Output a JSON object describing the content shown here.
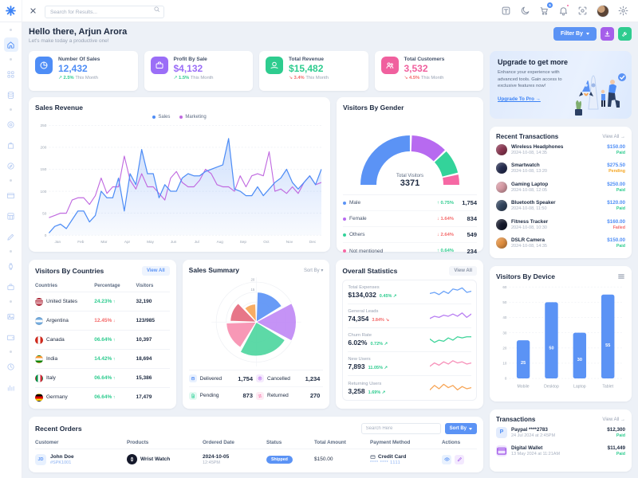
{
  "colors": {
    "primary": "#4e8df6",
    "purple": "#a55eea",
    "green": "#2ecc8f",
    "pink": "#f0609e",
    "positive": "#2ecc8f",
    "negative": "#f46a6a"
  },
  "topbar": {
    "search_placeholder": "Search for Results...",
    "cart_badge": "5",
    "icons": [
      "translate",
      "moon",
      "cart",
      "bell",
      "scan",
      "avatar",
      "gear"
    ]
  },
  "sidebar": {
    "items": [
      "separator",
      "home",
      "separator",
      "apps",
      "database",
      "separator",
      "target",
      "shopping-bag",
      "compass",
      "separator",
      "credit-card",
      "calculator",
      "pencil",
      "separator",
      "watch",
      "briefcase",
      "separator",
      "image",
      "wallet",
      "separator",
      "clock",
      "bar-chart"
    ]
  },
  "header": {
    "greeting": "Hello there, Arjun Arora",
    "subtitle": "Let's make today a productive one!",
    "filter_label": "Filter By"
  },
  "stats": [
    {
      "label": "Number Of Sales",
      "value": "12,432",
      "delta": "2.5%",
      "dir": "up",
      "suffix": "This Month",
      "color": "#4e8df6",
      "icon": "pie"
    },
    {
      "label": "Profit By Sale",
      "value": "$4,132",
      "delta": "1.5%",
      "dir": "up",
      "suffix": "This Month",
      "color": "#9b6ef7",
      "icon": "briefcase"
    },
    {
      "label": "Total Revenue",
      "value": "$15,482",
      "delta": "3.4%",
      "dir": "down",
      "suffix": "This Month",
      "color": "#2ecc8f",
      "icon": "money"
    },
    {
      "label": "Total Customers",
      "value": "3,532",
      "delta": "4.5%",
      "dir": "down",
      "suffix": "This Month",
      "color": "#f0609e",
      "icon": "users"
    }
  ],
  "upgrade": {
    "title": "Upgrade to get more",
    "body": "Enhance your experience with advanced tools. Gain access to exclusive features now!",
    "cta": "Upgrade To Pro →"
  },
  "recent_transactions": {
    "title": "Recent Transactions",
    "view_all": "View All →",
    "items": [
      {
        "name": "Wireless Headphones",
        "date": "2024-10-08, 14:35",
        "amount": "$150.00",
        "status": "Paid",
        "icon_bg": "#8a3550"
      },
      {
        "name": "Smartwatch",
        "date": "2024-10-08, 13:20",
        "amount": "$275.50",
        "status": "Pending",
        "icon_bg": "#232a4d"
      },
      {
        "name": "Gaming Laptop",
        "date": "2024-10-08, 12:05",
        "amount": "$250.00",
        "status": "Paid",
        "icon_bg": "#d79aa4"
      },
      {
        "name": "Bluetooth Speaker",
        "date": "2024-10-08, 11:50",
        "amount": "$120.00",
        "status": "Paid",
        "icon_bg": "#31435c"
      },
      {
        "name": "Fitness Tracker",
        "date": "2024-10-08, 10:30",
        "amount": "$160.00",
        "status": "Failed",
        "icon_bg": "#15192b"
      },
      {
        "name": "DSLR Camera",
        "date": "2024-10-08, 14:35",
        "amount": "$150.00",
        "status": "Paid",
        "icon_bg": "#e28f3f"
      }
    ]
  },
  "countries": {
    "title": "Visitors By Countries",
    "view_all": "View All",
    "columns": [
      "Countries",
      "Percentage",
      "Visitors"
    ],
    "rows": [
      {
        "country": "United States",
        "flag": "us",
        "pct": "24.23%",
        "dir": "up",
        "visitors": "32,190"
      },
      {
        "country": "Argentina",
        "flag": "ar",
        "pct": "12.45%",
        "dir": "down",
        "visitors": "123/985"
      },
      {
        "country": "Canada",
        "flag": "ca",
        "pct": "06.64%",
        "dir": "up",
        "visitors": "10,397"
      },
      {
        "country": "India",
        "flag": "in",
        "pct": "14.42%",
        "dir": "up",
        "visitors": "18,694"
      },
      {
        "country": "Italy",
        "flag": "it",
        "pct": "06.64%",
        "dir": "up",
        "visitors": "15,386"
      },
      {
        "country": "Germany",
        "flag": "de",
        "pct": "06.64%",
        "dir": "up",
        "visitors": "17,479"
      }
    ]
  },
  "orders": {
    "title": "Recent Orders",
    "search_placeholder": "Search Here",
    "sort_label": "Sort By",
    "columns": [
      "Customer",
      "Products",
      "Ordered Date",
      "Status",
      "Total Amount",
      "Payment Method",
      "Actions"
    ],
    "rows": [
      {
        "customer": "John Doe",
        "order_id": "#SPK1001",
        "initials": "JD",
        "product": "Wrist Watch",
        "date": "2024-10-05",
        "time": "12:45PM",
        "status": "Shipped",
        "amount": "$150.00",
        "payment_method": "Credit Card",
        "payment_detail": "**** **** 1111"
      }
    ]
  },
  "transactions": {
    "title": "Transactions",
    "view_all": "View All →",
    "items": [
      {
        "name": "Paypal ****2783",
        "date": "24 Jul 2024 at 2:45PM",
        "amount": "$12,300",
        "status": "Paid",
        "icon": "paypal"
      },
      {
        "name": "Digital Wallet",
        "date": "13 May 2024 at 11:21AM",
        "amount": "$11,449",
        "status": "Paid",
        "icon": "wallet"
      }
    ]
  },
  "chart_data": [
    {
      "id": "sales_revenue",
      "type": "line",
      "title": "Sales Revenue",
      "x_labels": [
        "Jan",
        "Feb",
        "Mar",
        "Apr",
        "May",
        "Jun",
        "Jul",
        "Aug",
        "Sep",
        "Oct",
        "Nov",
        "Dec"
      ],
      "ylim": [
        0,
        250
      ],
      "yticks": [
        0,
        50,
        100,
        150,
        200,
        250
      ],
      "grid": true,
      "legend_position": "top",
      "series": [
        {
          "name": "Sales",
          "color": "#4e8df6",
          "values": [
            5,
            20,
            25,
            15,
            35,
            55,
            55,
            30,
            45,
            100,
            85,
            85,
            130,
            55,
            140,
            115,
            195,
            140,
            140,
            85,
            115,
            100,
            100,
            130,
            140,
            135,
            135,
            145,
            150,
            155,
            160,
            220,
            105,
            100,
            90,
            90,
            110,
            90,
            105,
            120,
            130,
            150,
            120,
            105,
            120,
            135,
            115,
            150
          ]
        },
        {
          "name": "Marketing",
          "color": "#c06ae0",
          "values": [
            40,
            45,
            50,
            50,
            80,
            85,
            85,
            70,
            90,
            130,
            95,
            110,
            110,
            180,
            125,
            105,
            140,
            110,
            110,
            95,
            80,
            130,
            145,
            120,
            110,
            110,
            125,
            150,
            140,
            115,
            110,
            110,
            100,
            135,
            110,
            135,
            140,
            135,
            190,
            100,
            105,
            95,
            110,
            95,
            120,
            135,
            115,
            120
          ]
        }
      ]
    },
    {
      "id": "visitors_by_gender",
      "type": "pie",
      "variant": "half-donut",
      "title": "Visitors By Gender",
      "center": {
        "label": "Total Visitors",
        "value": "3371"
      },
      "slices": [
        {
          "label": "Male",
          "value": 1754,
          "display": "1,754",
          "color": "#5b93f5",
          "delta": "0.75%",
          "dir": "up"
        },
        {
          "label": "Female",
          "value": 834,
          "display": "834",
          "color": "#b76af0",
          "delta": "1.64%",
          "dir": "down"
        },
        {
          "label": "Others",
          "value": 549,
          "display": "549",
          "color": "#33d39a",
          "delta": "2.64%",
          "dir": "down"
        },
        {
          "label": "Not mentioned",
          "value": 234,
          "display": "234",
          "color": "#f668a4",
          "delta": "0.64%",
          "dir": "up"
        }
      ]
    },
    {
      "id": "sales_summary",
      "type": "pie",
      "variant": "polar-area",
      "title": "Sales Summary",
      "sort_label": "Sort By",
      "radial_ticks": [
        20,
        15
      ],
      "sectors": [
        {
          "color": "#5b93f5",
          "value": 15,
          "span": [
            2,
            58
          ]
        },
        {
          "color": "#c08af5",
          "value": 20,
          "span": [
            62,
            118
          ]
        },
        {
          "color": "#4fd6a0",
          "value": 17,
          "span": [
            122,
            208
          ]
        },
        {
          "color": "#f78fb0",
          "value": 15,
          "span": [
            212,
            268
          ]
        },
        {
          "color": "#e56a7e",
          "value": 13,
          "span": [
            272,
            316
          ]
        },
        {
          "color": "#f7a556",
          "value": 9,
          "span": [
            320,
            358
          ]
        }
      ],
      "legend": [
        {
          "label": "Delivered",
          "value": "1,754",
          "color": "#5b93f5",
          "icon": "box"
        },
        {
          "label": "Cancelled",
          "value": "1,234",
          "color": "#b76af0",
          "icon": "x-circle"
        },
        {
          "label": "Pending",
          "value": "873",
          "color": "#33d39a",
          "icon": "doc"
        },
        {
          "label": "Returned",
          "value": "270",
          "color": "#f668a4",
          "icon": "swap"
        }
      ]
    },
    {
      "id": "overall_statistics",
      "type": "line",
      "variant": "sparklines",
      "title": "Overall Statistics",
      "view_all": "View All",
      "items": [
        {
          "label": "Total Expenses",
          "value": "$134,032",
          "delta": "0.45%",
          "dir": "up",
          "color": "#6ba3f8",
          "spark": [
            4,
            5,
            3,
            6,
            4,
            8,
            7,
            9,
            5,
            6
          ]
        },
        {
          "label": "General Leads",
          "value": "74,354",
          "delta": "3.84%",
          "dir": "down",
          "color": "#b87ef2",
          "spark": [
            3,
            5,
            4,
            6,
            5,
            7,
            5,
            8,
            4,
            7
          ]
        },
        {
          "label": "Churn Rate",
          "value": "6.02%",
          "delta": "0.72%",
          "dir": "up",
          "color": "#3fd49a",
          "spark": [
            6,
            3,
            5,
            4,
            7,
            5,
            8,
            7,
            8,
            8
          ]
        },
        {
          "label": "New Users",
          "value": "7,893",
          "delta": "11.05%",
          "dir": "up",
          "color": "#f78fb8",
          "spark": [
            3,
            6,
            4,
            7,
            5,
            8,
            6,
            7,
            5,
            6
          ]
        },
        {
          "label": "Returning Users",
          "value": "3,258",
          "delta": "1.69%",
          "dir": "up",
          "color": "#f7a556",
          "spark": [
            4,
            8,
            5,
            9,
            6,
            8,
            4,
            7,
            5,
            6
          ]
        }
      ]
    },
    {
      "id": "visitors_by_device",
      "type": "bar",
      "title": "Visitors By Device",
      "categories": [
        "Mobile",
        "Desktop",
        "Laptop",
        "Tablet"
      ],
      "values": [
        25,
        50,
        30,
        55
      ],
      "ylim": [
        0,
        60
      ],
      "yticks": [
        0,
        10,
        20,
        30,
        40,
        50,
        60
      ],
      "color": "#5b93f5"
    }
  ]
}
